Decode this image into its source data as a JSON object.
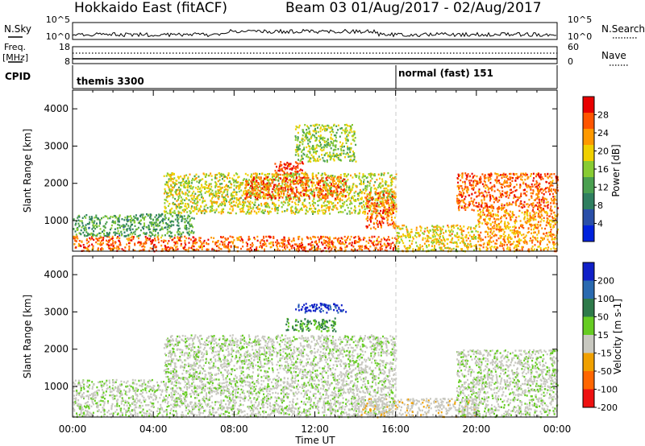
{
  "title": "Hokkaido East (fitACF)",
  "subtitle": "Beam 03 01/Aug/2017 - 02/Aug/2017",
  "top_panels": {
    "nsky_label": "N.Sky",
    "nsearch_label": "N.Search",
    "left_tick_top": "10^5",
    "left_tick_bottom": "10^0",
    "right_tick_top": "10^5",
    "right_tick_bottom": "10^0",
    "freq_label_1": "Freq.",
    "freq_label_2": "[MHz]",
    "freq_tick_top": "18",
    "freq_tick_bottom": "8",
    "nave_label": "Nave",
    "nave_tick_top": "60",
    "nave_tick_bottom": "0",
    "cpid_label": "CPID",
    "cpid_1": "themis 3300",
    "cpid_2": "normal (fast) 151"
  },
  "xaxis": {
    "label": "Time UT",
    "ticks": [
      "00:00",
      "04:00",
      "08:00",
      "12:00",
      "16:00",
      "20:00",
      "00:00"
    ]
  },
  "colors": {
    "power": [
      "#0022dd",
      "#2a4fa8",
      "#2f7f60",
      "#4aa050",
      "#88cc33",
      "#f0d000",
      "#ff9900",
      "#ff5500",
      "#e80000"
    ],
    "velocity": [
      "#1020c8",
      "#2a6ab0",
      "#2e7a4a",
      "#66cc22",
      "#c8c8c0",
      "#f0a000",
      "#ff6600",
      "#ee1111"
    ],
    "ground": "#c8c8c0"
  },
  "chart_data": [
    {
      "type": "heatmap",
      "title": "",
      "ylabel": "Slant Range [km]",
      "xlabel": "",
      "xlim": [
        0,
        24
      ],
      "ylim": [
        180,
        4500
      ],
      "yticks": [
        "1000",
        "2000",
        "3000",
        "4000"
      ],
      "colorbar": {
        "label": "Power [dB]",
        "range": [
          0,
          32
        ],
        "ticks": [
          "4",
          "8",
          "12",
          "16",
          "20",
          "24",
          "28"
        ]
      },
      "regions": [
        {
          "t": [
            0.0,
            16.0
          ],
          "r": [
            200,
            600
          ],
          "value": 26
        },
        {
          "t": [
            0.0,
            6.0
          ],
          "r": [
            600,
            1200
          ],
          "value": 12
        },
        {
          "t": [
            4.5,
            16.0
          ],
          "r": [
            1200,
            2300
          ],
          "value": 18
        },
        {
          "t": [
            8.5,
            13.5
          ],
          "r": [
            1600,
            2200
          ],
          "value": 26
        },
        {
          "t": [
            10.0,
            11.5
          ],
          "r": [
            2250,
            2600
          ],
          "value": 29
        },
        {
          "t": [
            11.0,
            14.0
          ],
          "r": [
            2600,
            3600
          ],
          "value": 16
        },
        {
          "t": [
            14.5,
            16.0
          ],
          "r": [
            800,
            1800
          ],
          "value": 26
        },
        {
          "t": [
            16.0,
            20.0
          ],
          "r": [
            200,
            900
          ],
          "value": 20
        },
        {
          "t": [
            19.0,
            24.0
          ],
          "r": [
            1300,
            2300
          ],
          "value": 26
        },
        {
          "t": [
            20.0,
            24.0
          ],
          "r": [
            200,
            1300
          ],
          "value": 23
        }
      ]
    },
    {
      "type": "heatmap",
      "title": "",
      "ylabel": "Slant Range [km]",
      "xlabel": "Time UT",
      "xlim": [
        0,
        24
      ],
      "ylim": [
        180,
        4500
      ],
      "yticks": [
        "1000",
        "2000",
        "3000",
        "4000"
      ],
      "colorbar": {
        "label": "Velocity [m s-1]",
        "range": [
          -250,
          250
        ],
        "ticks": [
          "200",
          "100",
          "50",
          "15",
          "-15",
          "-50",
          "-100",
          "-200"
        ]
      },
      "regions": [
        {
          "t": [
            0.0,
            16.0
          ],
          "r": [
            200,
            1200
          ],
          "value": 0
        },
        {
          "t": [
            4.5,
            16.0
          ],
          "r": [
            1200,
            2400
          ],
          "value": 0
        },
        {
          "t": [
            11.0,
            13.5
          ],
          "r": [
            3000,
            3250
          ],
          "value": 200
        },
        {
          "t": [
            10.5,
            13.0
          ],
          "r": [
            2500,
            2850
          ],
          "value": 60
        },
        {
          "t": [
            14.0,
            20.0
          ],
          "r": [
            200,
            700
          ],
          "value": -40
        },
        {
          "t": [
            19.0,
            24.0
          ],
          "r": [
            200,
            2000
          ],
          "value": 0
        }
      ]
    }
  ]
}
